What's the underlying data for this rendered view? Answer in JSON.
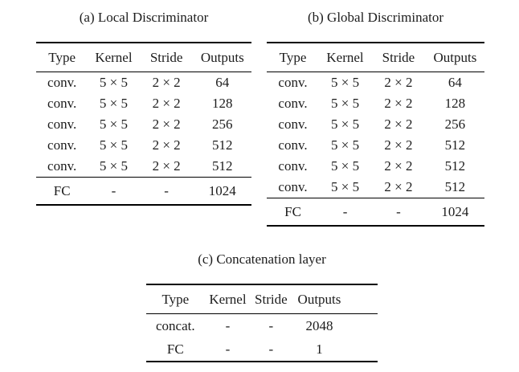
{
  "page": {
    "background": "#ffffff",
    "text_color": "#1c1c1c",
    "rule_color": "#000000"
  },
  "tables": [
    {
      "caption": "(a) Local Discriminator",
      "columns": [
        "Type",
        "Kernel",
        "Stride",
        "Outputs"
      ],
      "row_groups": [
        [
          [
            "conv.",
            "5 × 5",
            "2 × 2",
            "64"
          ],
          [
            "conv.",
            "5 × 5",
            "2 × 2",
            "128"
          ],
          [
            "conv.",
            "5 × 5",
            "2 × 2",
            "256"
          ],
          [
            "conv.",
            "5 × 5",
            "2 × 2",
            "512"
          ],
          [
            "conv.",
            "5 × 5",
            "2 × 2",
            "512"
          ]
        ],
        [
          [
            "FC",
            "-",
            "-",
            "1024"
          ]
        ]
      ]
    },
    {
      "caption": "(b) Global Discriminator",
      "columns": [
        "Type",
        "Kernel",
        "Stride",
        "Outputs"
      ],
      "row_groups": [
        [
          [
            "conv.",
            "5 × 5",
            "2 × 2",
            "64"
          ],
          [
            "conv.",
            "5 × 5",
            "2 × 2",
            "128"
          ],
          [
            "conv.",
            "5 × 5",
            "2 × 2",
            "256"
          ],
          [
            "conv.",
            "5 × 5",
            "2 × 2",
            "512"
          ],
          [
            "conv.",
            "5 × 5",
            "2 × 2",
            "512"
          ],
          [
            "conv.",
            "5 × 5",
            "2 × 2",
            "512"
          ]
        ],
        [
          [
            "FC",
            "-",
            "-",
            "1024"
          ]
        ]
      ]
    },
    {
      "caption": "(c) Concatenation layer",
      "columns": [
        "Type",
        "Kernel",
        "Stride",
        "Outputs"
      ],
      "row_groups": [
        [
          [
            "concat.",
            "-",
            "-",
            "2048"
          ],
          [
            "FC",
            "-",
            "-",
            "1"
          ]
        ]
      ]
    }
  ]
}
